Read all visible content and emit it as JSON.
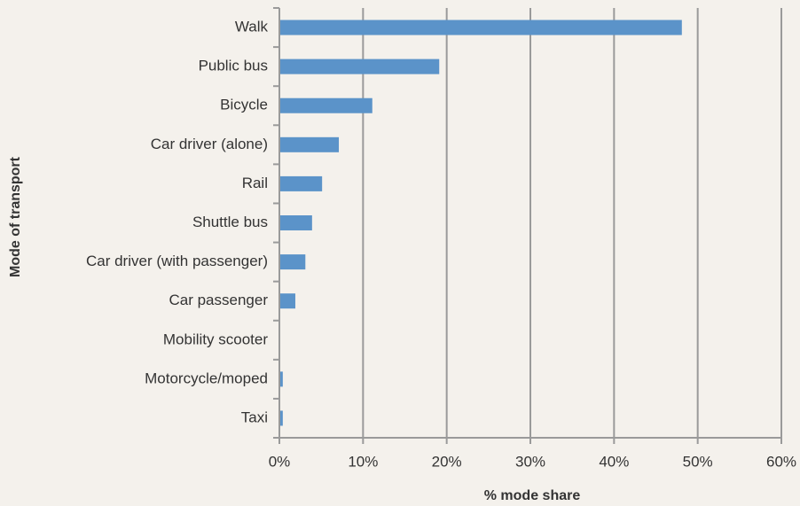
{
  "chart_data": {
    "type": "bar",
    "orientation": "horizontal",
    "categories": [
      "Walk",
      "Public bus",
      "Bicycle",
      "Car driver (alone)",
      "Rail",
      "Shuttle bus",
      "Car driver (with passenger)",
      "Car passenger",
      "Mobility scooter",
      "Motorcycle/moped",
      "Taxi"
    ],
    "values": [
      48,
      19,
      11,
      7,
      5,
      3.8,
      3,
      1.8,
      0,
      0.3,
      0.3
    ],
    "color": "#5b93c9",
    "xlim": [
      0,
      60
    ],
    "xticks": [
      {
        "value": 0,
        "label": "0%"
      },
      {
        "value": 10,
        "label": "10%"
      },
      {
        "value": 20,
        "label": "20%"
      },
      {
        "value": 30,
        "label": "30%"
      },
      {
        "value": 40,
        "label": "40%"
      },
      {
        "value": 50,
        "label": "50%"
      },
      {
        "value": 60,
        "label": "60%"
      }
    ],
    "xlabel": "% mode share",
    "ylabel": "Mode of transport",
    "grid": true
  }
}
